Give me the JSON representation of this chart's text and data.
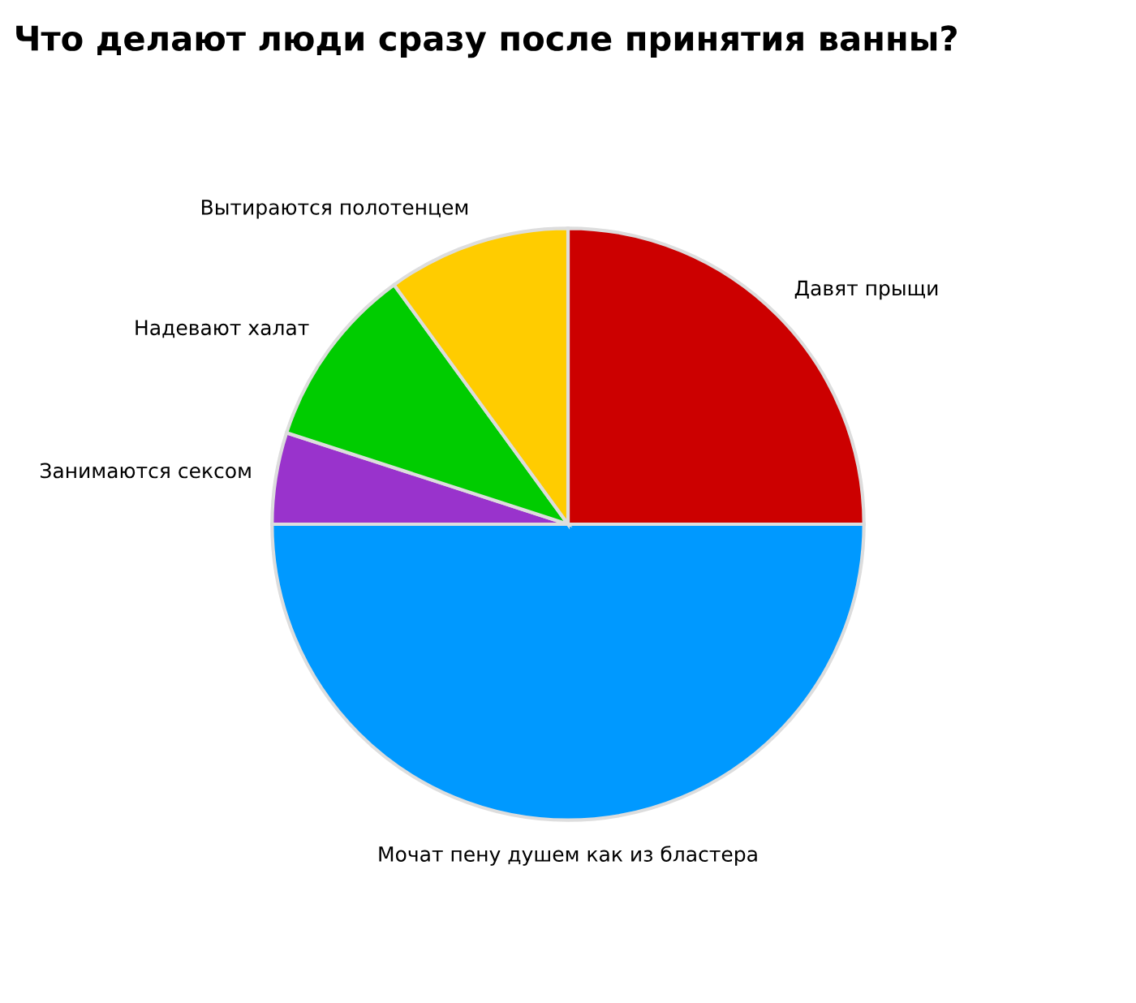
{
  "chart_data": {
    "type": "pie",
    "title": "Что делают люди сразу после принятия ванны?",
    "categories": [
      "Давят прыщи",
      "Мочат пену душем как из бластера",
      "Занимаются сексом",
      "Надевают халат",
      "Вытираются полотенцем"
    ],
    "values": [
      25,
      50,
      5,
      10,
      10
    ],
    "colors": [
      "#cc0000",
      "#0099ff",
      "#9933cc",
      "#00cc00",
      "#ffcc00"
    ]
  }
}
